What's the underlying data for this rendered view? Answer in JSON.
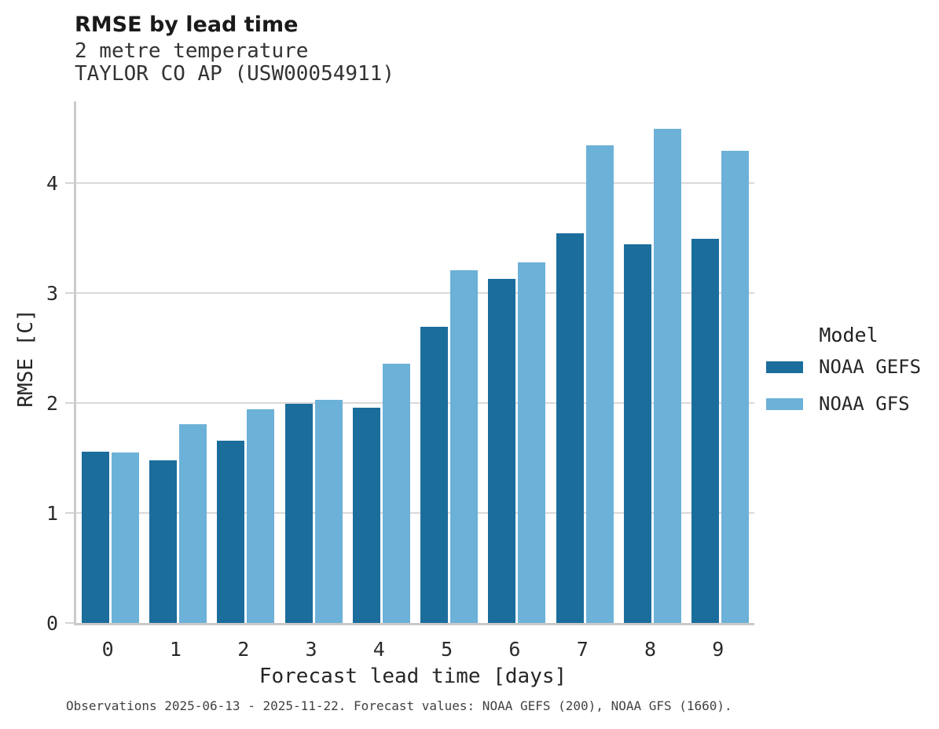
{
  "header": {
    "title": "RMSE by lead time",
    "subtitle_line1": "2 metre temperature",
    "subtitle_line2": "TAYLOR CO AP (USW00054911)"
  },
  "caption": "Observations 2025-06-13 - 2025-11-22. Forecast values: NOAA GEFS (200), NOAA GFS (1660).",
  "legend": {
    "title": "Model",
    "entries": [
      {
        "label": "NOAA GEFS",
        "color": "#1b6d9c"
      },
      {
        "label": "NOAA GFS",
        "color": "#6cb1d8"
      }
    ]
  },
  "colors": {
    "gefs_bar": "#1b6d9c",
    "gfs_bar": "#6cb1d8",
    "gridline": "#d9d9d9",
    "spine": "#cbcbcb"
  },
  "chart_data": {
    "type": "bar",
    "title": "RMSE by lead time",
    "subtitle": "2 metre temperature — TAYLOR CO AP (USW00054911)",
    "xlabel": "Forecast lead time [days]",
    "ylabel": "RMSE [C]",
    "categories": [
      "0",
      "1",
      "2",
      "3",
      "4",
      "5",
      "6",
      "7",
      "8",
      "9"
    ],
    "y_ticks": [
      0,
      1,
      2,
      3,
      4
    ],
    "ylim": [
      0,
      4.74
    ],
    "grid": "horizontal",
    "legend_position": "right",
    "series": [
      {
        "name": "NOAA GEFS",
        "color": "#1b6d9c",
        "values": [
          1.56,
          1.48,
          1.66,
          1.99,
          1.96,
          2.69,
          3.13,
          3.54,
          3.44,
          3.49
        ]
      },
      {
        "name": "NOAA GFS",
        "color": "#6cb1d8",
        "values": [
          1.55,
          1.81,
          1.94,
          2.03,
          2.36,
          3.21,
          3.28,
          4.34,
          4.49,
          4.29
        ]
      }
    ]
  }
}
